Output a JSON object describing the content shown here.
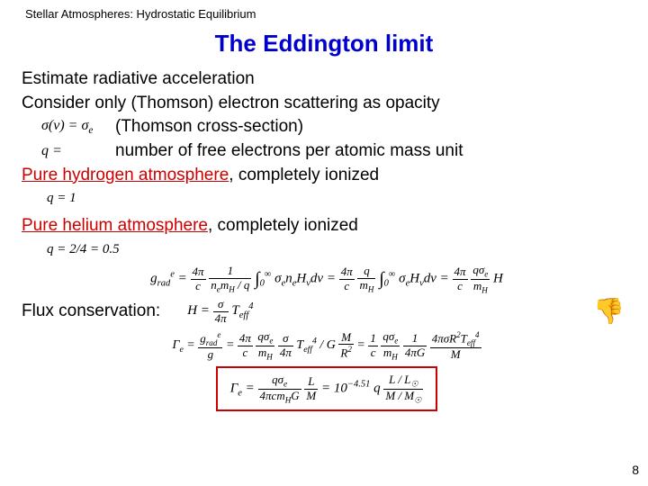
{
  "header": "Stellar Atmospheres:  Hydrostatic Equilibrium",
  "title": "The Eddington limit",
  "lines": {
    "l1": "Estimate radiative acceleration",
    "l2": "Consider only (Thomson) electron scattering as opacity",
    "eq_sigma": "σ(ν) = σ",
    "eq_sigma_sub": "e",
    "l3": "(Thomson cross-section)",
    "eq_q": "q =",
    "l4": "number of free electrons per atomic mass unit",
    "l5a": "Pure hydrogen atmosphere",
    "l5b": ", completely ionized",
    "eq_q1": "q = 1",
    "l6a": "Pure helium atmosphere",
    "l6b": ", completely ionized",
    "eq_q2": "q = 2/4 = 0.5",
    "flux_label": "Flux conservation:"
  },
  "equations": {
    "grad_full": "g<sub>rad</sub><sup>e</sup> = <span class='frac'><span class='n'>4π</span><span class='d'>c</span></span> <span class='frac'><span class='n'>1</span><span class='d'>n<sub>e</sub>m<sub>H</sub> / q</span></span> <span class='int'>∫</span><sub>0</sub><sup>∞</sup> σ<sub>e</sub>n<sub>e</sub>H<sub>ν</sub>dν = <span class='frac'><span class='n'>4π</span><span class='d'>c</span></span> <span class='frac'><span class='n'>q</span><span class='d'>m<sub>H</sub></span></span> <span class='int'>∫</span><sub>0</sub><sup>∞</sup> σ<sub>e</sub>H<sub>ν</sub>dν = <span class='frac'><span class='n'>4π</span><span class='d'>c</span></span> <span class='frac'><span class='n'>qσ<sub>e</sub></span><span class='d'>m<sub>H</sub></span></span> H",
    "flux_eq": "H = <span class='frac'><span class='n'>σ</span><span class='d'>4π</span></span> T<sub>eff</sub><sup>4</sup>",
    "gamma_eq": "Γ<sub>e</sub> = <span class='frac'><span class='n'>g<sub>rad</sub><sup>e</sup></span><span class='d'>g</span></span> = <span class='frac'><span class='n'>4π</span><span class='d'>c</span></span> <span class='frac'><span class='n'>qσ<sub>e</sub></span><span class='d'>m<sub>H</sub></span></span> <span class='frac'><span class='n'>σ</span><span class='d'>4π</span></span> T<sub>eff</sub><sup>4</sup> / G <span class='frac'><span class='n'>M</span><span class='d'>R<sup>2</sup></span></span> = <span class='frac'><span class='n'>1</span><span class='d'>c</span></span> <span class='frac'><span class='n'>qσ<sub>e</sub></span><span class='d'>m<sub>H</sub></span></span> <span class='frac'><span class='n'>1</span><span class='d'>4πG</span></span> <span class='frac'><span class='n'>4πσR<sup>2</sup>T<sub>eff</sub><sup>4</sup></span><span class='d'>M</span></span>",
    "boxed_eq": "Γ<sub>e</sub> = <span class='frac'><span class='n'>qσ<sub>e</sub></span><span class='d'>4πcm<sub>H</sub>G</span></span> <span class='frac'><span class='n'>L</span><span class='d'>M</span></span> = 10<sup>−4.51</sup> q <span class='frac'><span class='n'>L / L<sub>☉</sub></span><span class='d'>M / M<sub>☉</sub></span></span>"
  },
  "thumb_glyph": "👎",
  "colors": {
    "title": "#0000cc",
    "red": "#cc0000",
    "box_border": "#cc0000",
    "background": "#ffffff"
  },
  "page_number": "8"
}
